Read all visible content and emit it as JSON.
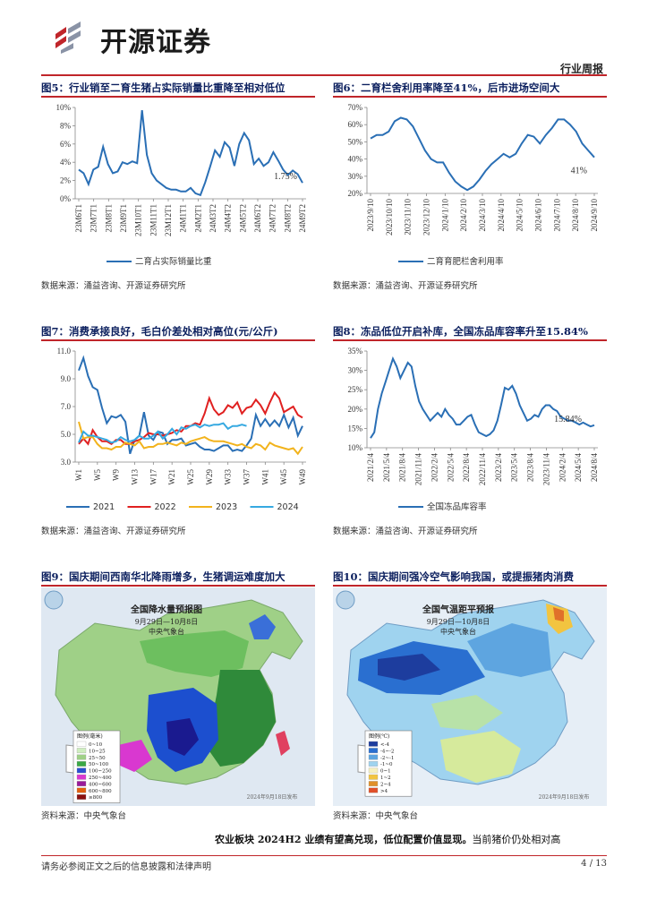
{
  "header": {
    "brand": "开源证券",
    "report_type": "行业周报",
    "colors": {
      "accent_red": "#c0252a",
      "title_blue": "#0b1f5e",
      "line_blue": "#2a6fb5"
    }
  },
  "figures": {
    "fig5": {
      "title": "图5：行业销至二育生猪占实际销量比重降至相对低位",
      "source": "数据来源：涌益咨询、开源证券研究所",
      "end_label": "1.75%"
    },
    "fig6": {
      "title": "图6：二育栏舍利用率降至41%，后市进场空间大",
      "source": "数据来源：涌益咨询、开源证券研究所",
      "end_label": "41%"
    },
    "fig7": {
      "title": "图7：消费承接良好，毛白价差处相对高位(元/公斤)",
      "source": "数据来源：涌益咨询、开源证券研究所"
    },
    "fig8": {
      "title": "图8：冻品低位开启补库，全国冻品库容率升至15.84%",
      "source": "数据来源：涌益咨询、开源证券研究所",
      "end_label": "15.84%"
    },
    "fig9": {
      "title": "图9：国庆期间西南华北降雨增多，生猪调运难度加大",
      "source": "资料来源：中央气象台",
      "map_title": "全国降水量预报图",
      "map_date": "9月29日—10月8日",
      "map_org": "中央气象台",
      "legend_title": "图例(毫米)",
      "legend": [
        "0~10",
        "10~25",
        "25~50",
        "50~100",
        "100~250",
        "250~400",
        "400~600",
        "600~800",
        "≥800"
      ],
      "stamp": "2024年9月18日发布"
    },
    "fig10": {
      "title": "图10：国庆期间强冷空气影响我国，或提振猪肉消费",
      "source": "资料来源：中央气象台",
      "map_title": "全国气温距平预报",
      "map_date": "9月29日—10月8日",
      "map_org": "中央气象台",
      "legend_title": "图例(℃)",
      "legend": [
        "<-4",
        "-4~-2",
        "-2~-1",
        "-1~0",
        "0~1",
        "1~2",
        "2~4",
        ">4"
      ],
      "stamp": "2024年9月18日发布"
    }
  },
  "chart_data": [
    {
      "id": "fig5",
      "type": "line",
      "title": "图5：行业销至二育生猪占实际销量比重降至相对低位",
      "ylim": [
        0,
        10
      ],
      "yticks": [
        "0%",
        "2%",
        "4%",
        "6%",
        "8%",
        "10%"
      ],
      "xticks": [
        "23M6T1",
        "23M7T1",
        "23M8T1",
        "23M9T1",
        "23M10T1",
        "23M11T1",
        "23M12T1",
        "24M1T1",
        "24M2T1",
        "24M3T2",
        "24M4T2",
        "24M5T2",
        "24M6T2",
        "24M7T2",
        "24M8T2",
        "24M9T2"
      ],
      "series": [
        {
          "name": "二育占实际销量比重",
          "color": "#2a6fb5",
          "values": [
            3.2,
            2.8,
            1.6,
            3.2,
            3.5,
            5.7,
            3.8,
            2.8,
            3.0,
            4.0,
            3.8,
            4.1,
            3.9,
            9.7,
            4.8,
            2.8,
            2.0,
            1.6,
            1.2,
            1.0,
            1.0,
            0.8,
            0.8,
            1.2,
            0.6,
            0.4,
            1.8,
            3.5,
            5.3,
            4.6,
            6.2,
            5.6,
            3.6,
            6.0,
            7.2,
            6.4,
            3.8,
            4.4,
            3.6,
            4.0,
            5.1,
            4.2,
            3.2,
            2.6,
            3.1,
            2.7,
            1.75
          ]
        }
      ]
    },
    {
      "id": "fig6",
      "type": "line",
      "title": "图6：二育栏舍利用率降至41%，后市进场空间大",
      "ylim": [
        20,
        70
      ],
      "yticks": [
        "20%",
        "30%",
        "40%",
        "50%",
        "60%",
        "70%"
      ],
      "xticks": [
        "2023/9/10",
        "2023/10/10",
        "2023/11/10",
        "2023/12/10",
        "2024/1/10",
        "2024/2/10",
        "2024/3/10",
        "2024/4/10",
        "2024/5/10",
        "2024/6/10",
        "2024/7/10",
        "2024/8/10",
        "2024/9/10"
      ],
      "series": [
        {
          "name": "二育育肥栏舍利用率",
          "color": "#2a6fb5",
          "values": [
            52,
            54,
            54,
            56,
            62,
            64,
            63,
            59,
            52,
            45,
            40,
            38,
            38,
            32,
            27,
            24,
            22,
            24,
            28,
            33,
            37,
            40,
            43,
            41,
            43,
            49,
            54,
            53,
            49,
            54,
            58,
            63,
            63,
            60,
            56,
            49,
            45,
            41
          ]
        }
      ]
    },
    {
      "id": "fig7",
      "type": "line",
      "title": "图7：消费承接良好，毛白价差处相对高位(元/公斤)",
      "ylim": [
        3,
        11
      ],
      "yticks": [
        "3.0",
        "5.0",
        "7.0",
        "9.0",
        "11.0"
      ],
      "xticks": [
        "W1",
        "W5",
        "W9",
        "W13",
        "W17",
        "W21",
        "W25",
        "W29",
        "W33",
        "W37",
        "W41",
        "W45",
        "W49"
      ],
      "series": [
        {
          "name": "2021",
          "color": "#2a6fb5",
          "values": [
            9.6,
            10.5,
            9.2,
            8.4,
            8.2,
            6.9,
            5.8,
            6.3,
            6.2,
            6.4,
            5.9,
            3.6,
            4.6,
            4.9,
            6.6,
            4.9,
            4.6,
            5.2,
            5.1,
            4.3,
            4.6,
            4.6,
            4.7,
            4.2,
            4.3,
            4.4,
            4.1,
            3.9,
            3.9,
            3.8,
            4.0,
            4.2,
            4.2,
            3.8,
            3.9,
            3.8,
            4.2,
            4.7,
            6.4,
            5.6,
            6.1,
            5.6,
            6.0,
            5.6,
            6.4,
            5.5,
            6.2,
            4.9,
            5.6
          ]
        },
        {
          "name": "2022",
          "color": "#e02020",
          "values": [
            4.3,
            4.7,
            4.3,
            5.3,
            4.8,
            4.5,
            4.5,
            4.3,
            4.6,
            4.6,
            4.3,
            4.3,
            4.5,
            4.6,
            4.8,
            5.1,
            5.0,
            5.0,
            4.9,
            5.0,
            5.1,
            5.3,
            5.2,
            5.6,
            5.6,
            5.8,
            5.7,
            6.5,
            7.6,
            6.8,
            6.4,
            6.6,
            7.1,
            6.9,
            7.3,
            6.5,
            6.9,
            7.0,
            7.5,
            7.1,
            6.5,
            7.3,
            8.0,
            7.6,
            6.6,
            6.8,
            7.0,
            6.4,
            6.2
          ]
        },
        {
          "name": "2023",
          "color": "#f2b31c",
          "values": [
            5.9,
            4.7,
            4.8,
            4.8,
            4.3,
            4.0,
            4.0,
            3.9,
            4.1,
            4.1,
            4.4,
            4.3,
            4.2,
            4.5,
            4.0,
            4.1,
            4.1,
            4.3,
            4.3,
            4.4,
            4.3,
            4.2,
            4.4,
            4.3,
            4.5,
            4.6,
            4.7,
            4.8,
            4.6,
            4.5,
            4.5,
            4.5,
            4.4,
            4.3,
            4.2,
            4.3,
            4.1,
            4.0,
            4.3,
            4.2,
            3.9,
            4.4,
            4.2,
            4.1,
            4.0,
            3.9,
            4.0,
            3.6,
            4.1
          ]
        },
        {
          "name": "2024",
          "color": "#36a9e1",
          "values": [
            4.4,
            5.2,
            4.9,
            4.9,
            4.8,
            4.7,
            4.6,
            4.4,
            4.5,
            4.8,
            4.6,
            4.5,
            4.6,
            4.9,
            4.7,
            4.7,
            4.9,
            5.2,
            4.7,
            5.0,
            5.4,
            5.0,
            5.5,
            5.4,
            5.6,
            5.7,
            5.5,
            5.7,
            5.6,
            5.7,
            5.7,
            5.8,
            5.4,
            5.6,
            5.6,
            5.7,
            5.6
          ]
        }
      ]
    },
    {
      "id": "fig8",
      "type": "line",
      "title": "图8：冻品低位开启补库，全国冻品库容率升至15.84%",
      "ylim": [
        10,
        35
      ],
      "yticks": [
        "10%",
        "15%",
        "20%",
        "25%",
        "30%",
        "35%"
      ],
      "xticks": [
        "2021/2/4",
        "2021/5/4",
        "2021/8/4",
        "2021/11/4",
        "2022/2/4",
        "2022/5/4",
        "2022/8/4",
        "2022/11/4",
        "2023/2/4",
        "2023/5/4",
        "2023/8/4",
        "2023/11/4",
        "2024/2/4",
        "2024/5/4",
        "2024/8/4"
      ],
      "series": [
        {
          "name": "全国冻品库容率",
          "color": "#2a6fb5",
          "values": [
            12.5,
            14,
            20,
            24,
            27,
            30,
            33,
            31,
            28,
            30,
            32,
            31,
            26,
            22,
            20,
            18.5,
            17,
            18,
            19,
            18,
            20,
            18.5,
            17.5,
            16,
            16,
            17,
            18,
            18.5,
            16,
            14,
            13.5,
            13,
            13.5,
            14.5,
            17,
            21,
            25.5,
            25,
            26,
            24,
            21,
            19,
            17,
            17.5,
            18.5,
            18,
            20,
            21,
            21,
            20,
            19.5,
            18,
            17.5,
            17,
            17,
            16.5,
            16,
            16.5,
            16,
            15.5,
            15.84
          ]
        }
      ]
    }
  ],
  "bottom": {
    "paragraph_bold": "农业板块 2024H2 业绩有望高兑现，低位配置价值显现。",
    "paragraph_rest": "当前猪价仍处相对高"
  },
  "footer": {
    "disclaimer": "请务必参阅正文之后的信息披露和法律声明",
    "page": "4 / 13"
  }
}
